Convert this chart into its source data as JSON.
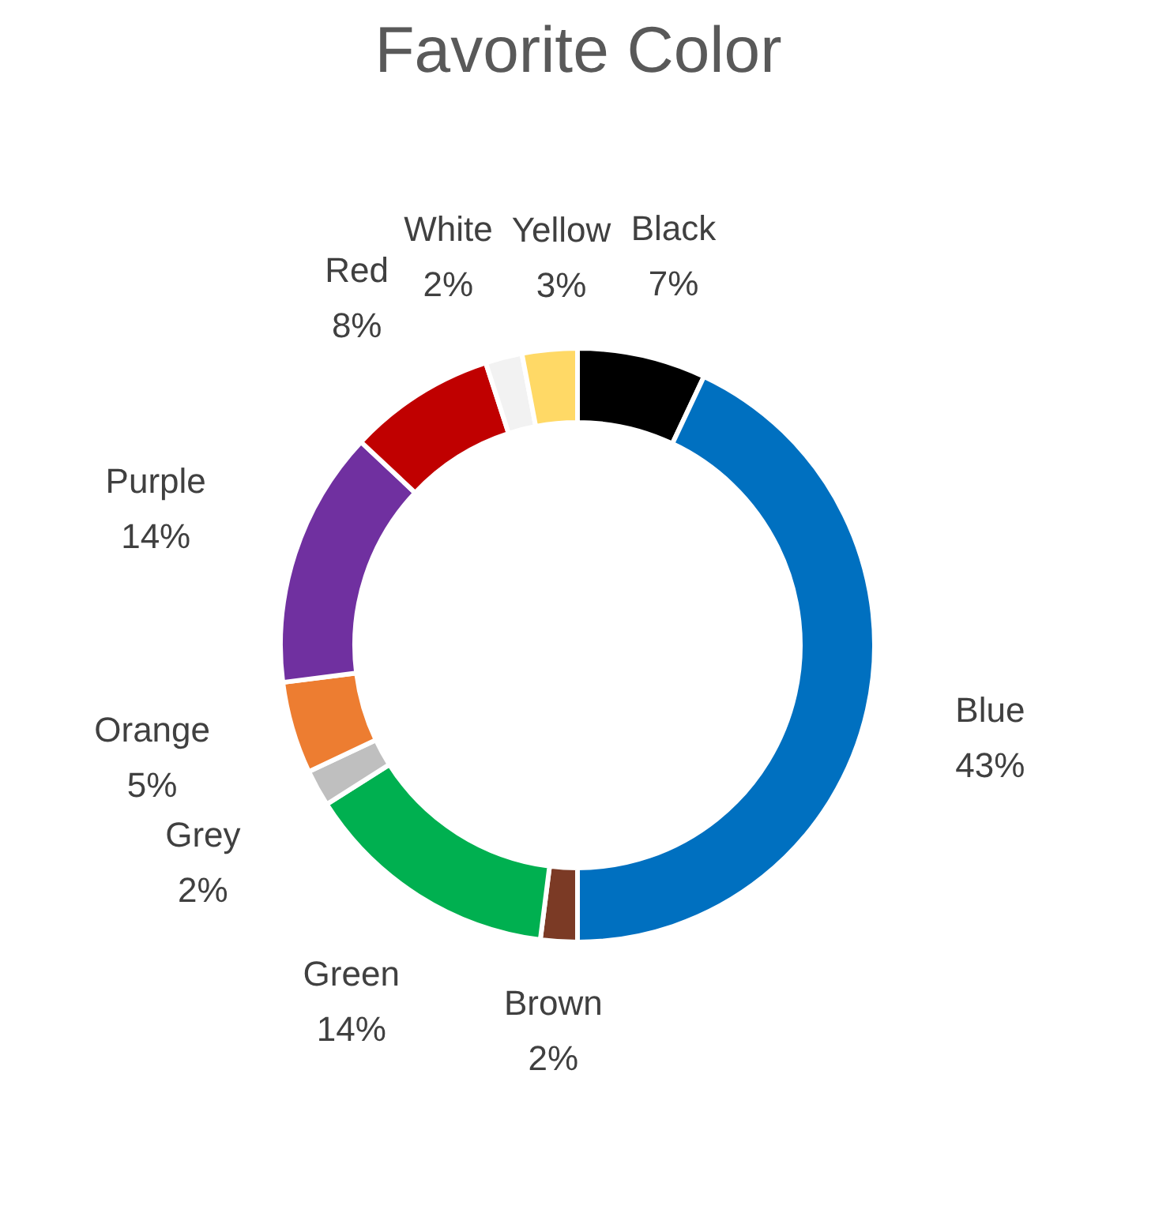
{
  "chart_data": {
    "type": "donut",
    "title": "Favorite Color",
    "categories": [
      "Black",
      "Blue",
      "Brown",
      "Green",
      "Grey",
      "Orange",
      "Purple",
      "Red",
      "White",
      "Yellow"
    ],
    "values": [
      7,
      43,
      2,
      14,
      2,
      5,
      14,
      8,
      2,
      3
    ],
    "colors": [
      "#000000",
      "#0070c0",
      "#7b3a25",
      "#00b050",
      "#bfbfbf",
      "#ed7d31",
      "#7030a0",
      "#c00000",
      "#f2f2f2",
      "#ffd966"
    ],
    "value_labels": [
      "7%",
      "43%",
      "2%",
      "14%",
      "2%",
      "5%",
      "14%",
      "8%",
      "2%",
      "3%"
    ]
  }
}
